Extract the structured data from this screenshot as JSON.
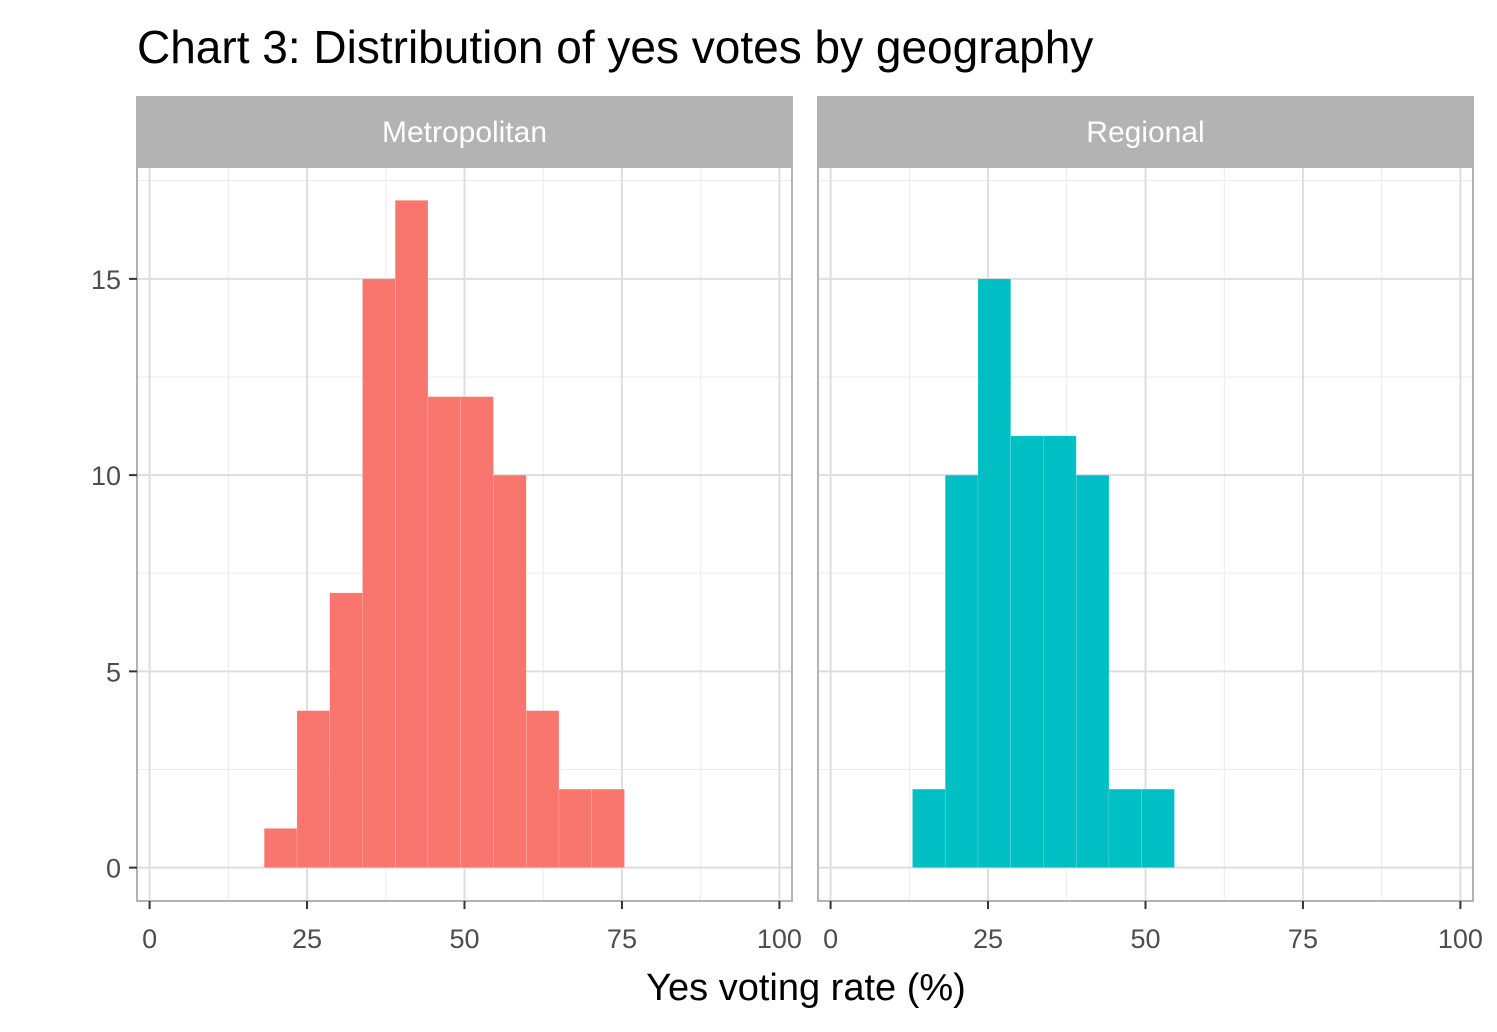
{
  "chart_data": {
    "type": "bar",
    "title": "Chart 3: Distribution of yes votes by geography",
    "xlabel": "Yes voting rate (%)",
    "ylabel": "",
    "xlim": [
      -2,
      102
    ],
    "ylim": [
      -0.85,
      17.85
    ],
    "x_ticks": [
      "0",
      "25",
      "50",
      "75",
      "100"
    ],
    "x_tick_values": [
      0,
      25,
      50,
      75,
      100
    ],
    "y_ticks": [
      "0",
      "5",
      "10",
      "15"
    ],
    "y_tick_values": [
      0,
      5,
      10,
      15
    ],
    "grid": true,
    "legend": "none",
    "bin_width": 5.2,
    "panels": [
      {
        "name": "Metropolitan",
        "color": "#F8766D",
        "bin_starts": [
          18.2,
          23.4,
          28.6,
          33.8,
          39.0,
          44.2,
          49.4,
          54.6,
          59.8,
          65.0,
          70.2
        ],
        "counts": [
          1,
          4,
          7,
          15,
          17,
          12,
          12,
          10,
          4,
          2,
          2
        ]
      },
      {
        "name": "Regional",
        "color": "#00BFC4",
        "bin_starts": [
          13.0,
          18.2,
          23.4,
          28.6,
          33.8,
          39.0,
          44.2,
          49.4
        ],
        "counts": [
          2,
          10,
          15,
          11,
          11,
          10,
          2,
          2
        ]
      }
    ]
  }
}
